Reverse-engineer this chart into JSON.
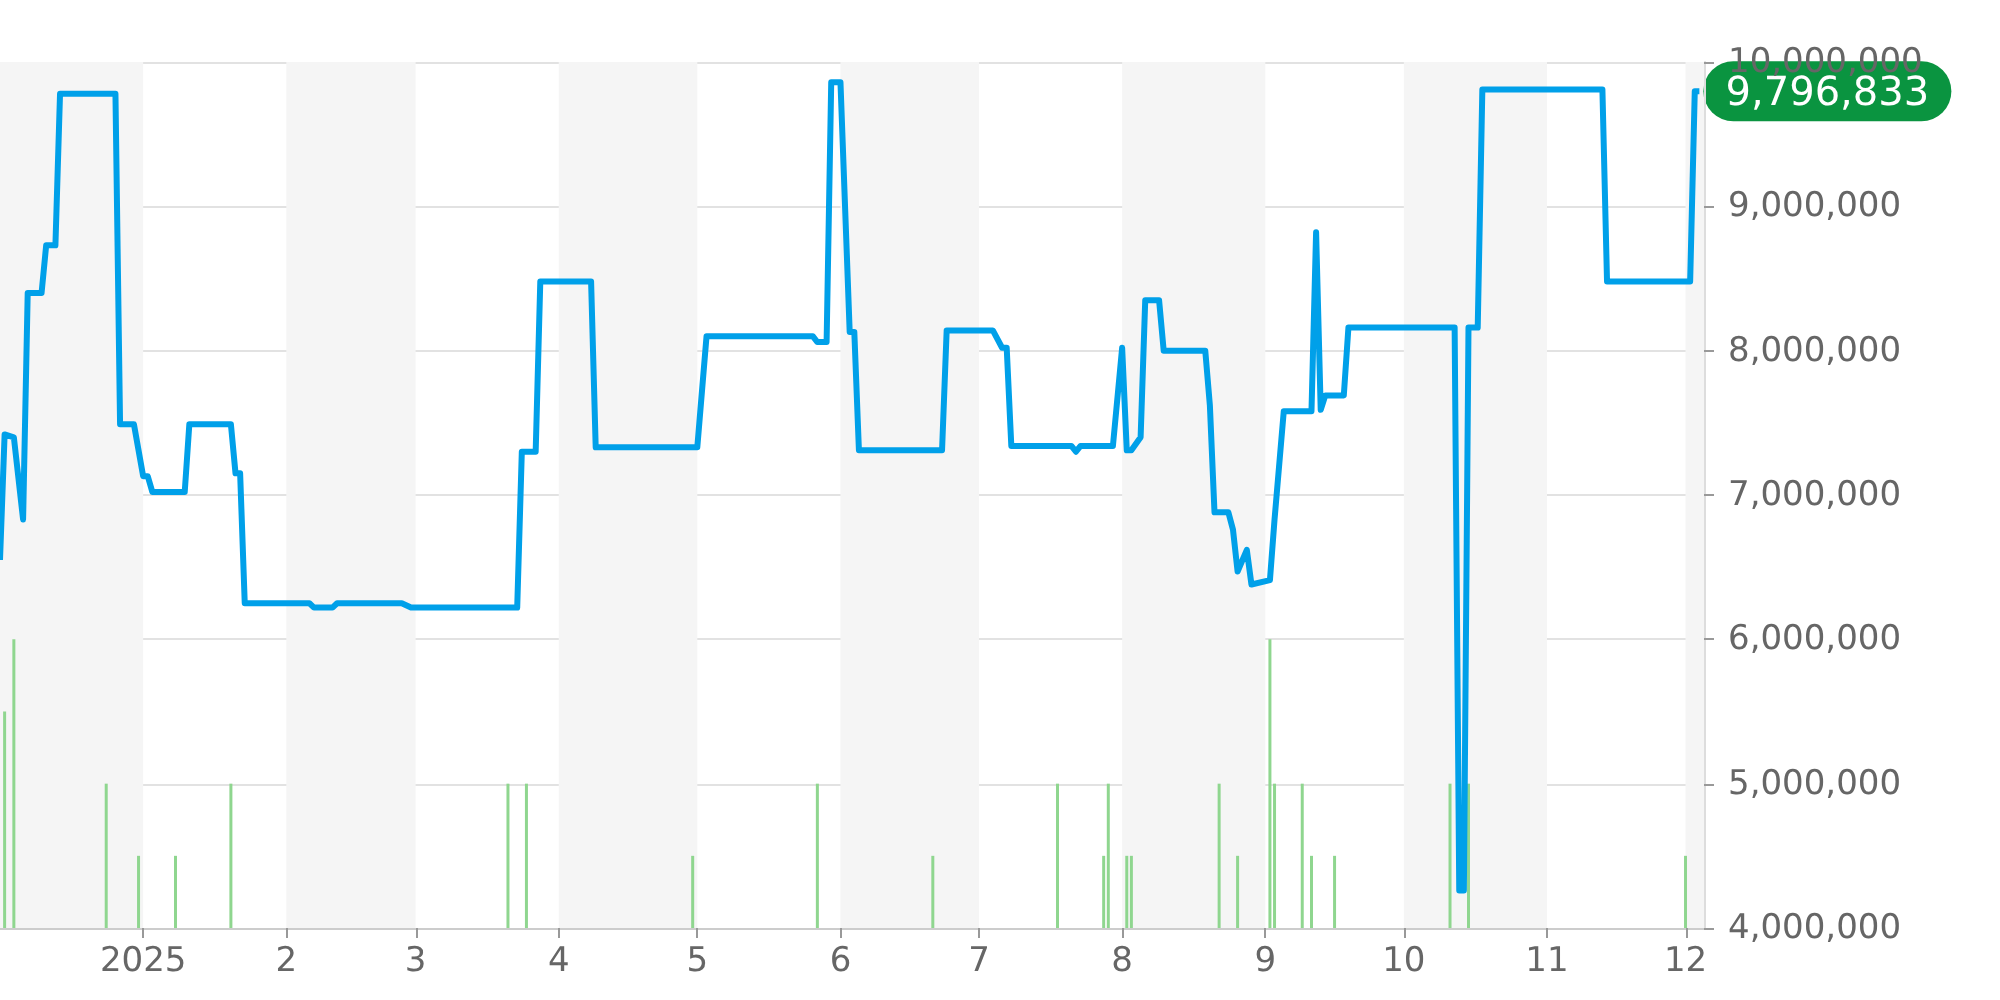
{
  "chart_data": {
    "type": "line",
    "xlim": [
      "2024-12-01",
      "2025-12-05"
    ],
    "xticks": [
      {
        "value": "2025-01-01",
        "label": "2025"
      },
      {
        "value": "2025-02-01",
        "label": "2"
      },
      {
        "value": "2025-03-01",
        "label": "3"
      },
      {
        "value": "2025-04-01",
        "label": "4"
      },
      {
        "value": "2025-05-01",
        "label": "5"
      },
      {
        "value": "2025-06-01",
        "label": "6"
      },
      {
        "value": "2025-07-01",
        "label": "7"
      },
      {
        "value": "2025-08-01",
        "label": "8"
      },
      {
        "value": "2025-09-01",
        "label": "9"
      },
      {
        "value": "2025-10-01",
        "label": "10"
      },
      {
        "value": "2025-11-01",
        "label": "11"
      },
      {
        "value": "2025-12-01",
        "label": "12"
      }
    ],
    "ylim": [
      4000000,
      10000000
    ],
    "yticks": [
      {
        "value": 4000000,
        "label": "4,000,000"
      },
      {
        "value": 5000000,
        "label": "5,000,000"
      },
      {
        "value": 6000000,
        "label": "6,000,000"
      },
      {
        "value": 7000000,
        "label": "7,000,000"
      },
      {
        "value": 8000000,
        "label": "8,000,000"
      },
      {
        "value": 9000000,
        "label": "9,000,000"
      },
      {
        "value": 10000000,
        "label": "10,000,000"
      }
    ],
    "grid": "y",
    "marker": "none",
    "line_style": "solid",
    "bands": [
      {
        "axis": "x",
        "from": "2024-12-01",
        "to": "2025-01-01",
        "color": "#f5f5f5"
      },
      {
        "axis": "x",
        "from": "2025-02-01",
        "to": "2025-03-01",
        "color": "#f5f5f5"
      },
      {
        "axis": "x",
        "from": "2025-04-01",
        "to": "2025-05-01",
        "color": "#f5f5f5"
      },
      {
        "axis": "x",
        "from": "2025-06-01",
        "to": "2025-07-01",
        "color": "#f5f5f5"
      },
      {
        "axis": "x",
        "from": "2025-08-01",
        "to": "2025-09-01",
        "color": "#f5f5f5"
      },
      {
        "axis": "x",
        "from": "2025-10-01",
        "to": "2025-11-01",
        "color": "#f5f5f5"
      },
      {
        "axis": "x",
        "from": "2025-12-01",
        "to": "2025-12-05",
        "color": "#f5f5f5"
      }
    ],
    "annotations": [
      {
        "text": "9,796,833",
        "x": "2025-12-04",
        "y": 9796833
      }
    ],
    "series": [
      {
        "type": "bar",
        "color": "#8fd68f",
        "x": [
          "2024-12-02",
          "2024-12-04",
          "2024-12-24",
          "2024-12-31",
          "2025-01-08",
          "2025-01-20",
          "2025-03-21",
          "2025-03-25",
          "2025-04-30",
          "2025-05-27",
          "2025-06-21",
          "2025-07-18",
          "2025-07-28",
          "2025-07-29",
          "2025-08-02",
          "2025-08-03",
          "2025-08-22",
          "2025-08-26",
          "2025-09-02",
          "2025-09-03",
          "2025-09-09",
          "2025-09-11",
          "2025-09-16",
          "2025-10-11",
          "2025-10-15",
          "2025-12-01"
        ],
        "values": [
          5500000,
          6000000,
          5000000,
          4500000,
          4500000,
          5000000,
          5000000,
          5000000,
          4500000,
          5000000,
          4500000,
          5000000,
          4500000,
          5000000,
          4500000,
          4500000,
          5000000,
          4500000,
          6000000,
          5000000,
          5000000,
          4500000,
          4500000,
          5000000,
          5000000,
          4500000
        ]
      },
      {
        "color": "#00a0e9",
        "x": [
          "2024-12-01",
          "2024-12-02",
          "2024-12-04",
          "2024-12-06",
          "2024-12-07",
          "2024-12-10",
          "2024-12-11",
          "2024-12-13",
          "2024-12-14",
          "2024-12-26",
          "2024-12-27",
          "2024-12-30",
          "2025-01-01",
          "2025-01-02",
          "2025-01-03",
          "2025-01-10",
          "2025-01-11",
          "2025-01-20",
          "2025-01-21",
          "2025-01-22",
          "2025-01-23",
          "2025-02-06",
          "2025-02-07",
          "2025-02-11",
          "2025-02-12",
          "2025-02-26",
          "2025-02-28",
          "2025-03-23",
          "2025-03-24",
          "2025-03-27",
          "2025-03-28",
          "2025-04-08",
          "2025-04-09",
          "2025-05-01",
          "2025-05-03",
          "2025-05-26",
          "2025-05-27",
          "2025-05-29",
          "2025-05-30",
          "2025-06-01",
          "2025-06-03",
          "2025-06-04",
          "2025-06-05",
          "2025-06-23",
          "2025-06-24",
          "2025-07-04",
          "2025-07-06",
          "2025-07-07",
          "2025-07-08",
          "2025-07-21",
          "2025-07-22",
          "2025-07-23",
          "2025-07-30",
          "2025-08-01",
          "2025-08-02",
          "2025-08-03",
          "2025-08-05",
          "2025-08-06",
          "2025-08-09",
          "2025-08-10",
          "2025-08-19",
          "2025-08-20",
          "2025-08-21",
          "2025-08-24",
          "2025-08-25",
          "2025-08-26",
          "2025-08-28",
          "2025-08-29",
          "2025-09-02",
          "2025-09-03",
          "2025-09-05",
          "2025-09-11",
          "2025-09-12",
          "2025-09-13",
          "2025-09-14",
          "2025-09-18",
          "2025-09-19",
          "2025-10-12",
          "2025-10-13",
          "2025-10-14",
          "2025-10-15",
          "2025-10-17",
          "2025-10-18",
          "2025-11-13",
          "2025-11-14",
          "2025-12-02",
          "2025-12-03",
          "2025-12-04"
        ],
        "values": [
          6550000,
          7420000,
          7400000,
          6830000,
          8400000,
          8400000,
          8730000,
          8730000,
          9780000,
          9780000,
          7490000,
          7490000,
          7130000,
          7130000,
          7020000,
          7020000,
          7490000,
          7490000,
          7150000,
          7150000,
          6250000,
          6250000,
          6220000,
          6220000,
          6250000,
          6250000,
          6220000,
          6220000,
          7300000,
          7300000,
          8480000,
          8480000,
          7330000,
          7330000,
          8100000,
          8100000,
          8060000,
          8060000,
          9860000,
          9860000,
          8130000,
          8130000,
          7310000,
          7310000,
          8140000,
          8140000,
          8020000,
          8020000,
          7340000,
          7340000,
          7300000,
          7340000,
          7340000,
          8020000,
          7310000,
          7310000,
          7400000,
          8350000,
          8350000,
          8000000,
          8000000,
          7620000,
          6880000,
          6880000,
          6760000,
          6470000,
          6620000,
          6380000,
          6410000,
          6830000,
          7580000,
          7580000,
          8820000,
          7590000,
          7690000,
          7690000,
          8160000,
          8160000,
          4260000,
          4260000,
          8160000,
          8160000,
          9810000,
          9810000,
          8480000,
          8480000,
          9796833,
          9796833
        ]
      }
    ]
  }
}
